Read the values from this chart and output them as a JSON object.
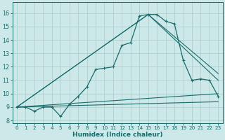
{
  "xlabel": "Humidex (Indice chaleur)",
  "ylabel": "",
  "xlim": [
    -0.5,
    23.5
  ],
  "ylim": [
    7.8,
    16.8
  ],
  "yticks": [
    8,
    9,
    10,
    11,
    12,
    13,
    14,
    15,
    16
  ],
  "xticks": [
    0,
    1,
    2,
    3,
    4,
    5,
    6,
    7,
    8,
    9,
    10,
    11,
    12,
    13,
    14,
    15,
    16,
    17,
    18,
    19,
    20,
    21,
    22,
    23
  ],
  "background_color": "#cce8e8",
  "grid_color": "#b0d0d0",
  "line_color": "#1a6b6b",
  "main_line": {
    "x": [
      0,
      1,
      2,
      3,
      4,
      5,
      6,
      7,
      8,
      9,
      10,
      11,
      12,
      13,
      14,
      15,
      16,
      17,
      18,
      19,
      20,
      21,
      22,
      23
    ],
    "y": [
      9.0,
      9.0,
      8.7,
      9.0,
      9.0,
      8.3,
      9.2,
      9.8,
      10.5,
      11.8,
      11.9,
      12.0,
      13.6,
      13.8,
      15.8,
      15.9,
      15.9,
      15.4,
      15.2,
      12.5,
      11.0,
      11.1,
      11.0,
      9.8
    ]
  },
  "extra_lines": [
    {
      "x": [
        0,
        23
      ],
      "y": [
        9.0,
        9.4
      ]
    },
    {
      "x": [
        0,
        23
      ],
      "y": [
        9.0,
        10.0
      ]
    },
    {
      "x": [
        0,
        15,
        23
      ],
      "y": [
        9.0,
        15.9,
        11.5
      ]
    },
    {
      "x": [
        0,
        15,
        23
      ],
      "y": [
        9.0,
        15.9,
        11.0
      ]
    }
  ]
}
